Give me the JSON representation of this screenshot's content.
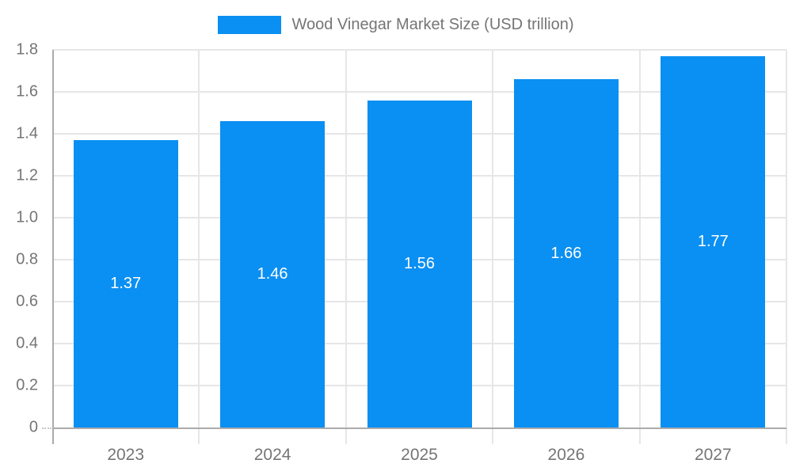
{
  "legend": {
    "label": "Wood Vinegar Market Size (USD trillion)"
  },
  "chart_data": {
    "type": "bar",
    "title": "Wood Vinegar Market Size (USD trillion)",
    "series_name": "Wood Vinegar Market Size (USD trillion)",
    "categories": [
      "2023",
      "2024",
      "2025",
      "2026",
      "2027"
    ],
    "values": [
      1.37,
      1.46,
      1.56,
      1.66,
      1.77
    ],
    "value_labels": [
      "1.37",
      "1.46",
      "1.56",
      "1.66",
      "1.77"
    ],
    "xlabel": "",
    "ylabel": "",
    "ylim": [
      0,
      1.8
    ],
    "y_ticks": {
      "values": [
        0,
        0.2,
        0.4,
        0.6,
        0.8,
        1.0,
        1.2,
        1.4,
        1.6,
        1.8
      ],
      "labels": [
        "0",
        "0.2",
        "0.4",
        "0.6",
        "0.8",
        "1.0",
        "1.2",
        "1.4",
        "1.6",
        "1.8"
      ]
    },
    "grid": true,
    "legend_position": "top",
    "bar_color": "#0a8ff2",
    "gridline_color": "#e6e6e6",
    "axis_line_color": "#ababab",
    "axis_text_color": "#757575",
    "value_label_color": "#ffffff",
    "background_color": "#ffffff"
  }
}
